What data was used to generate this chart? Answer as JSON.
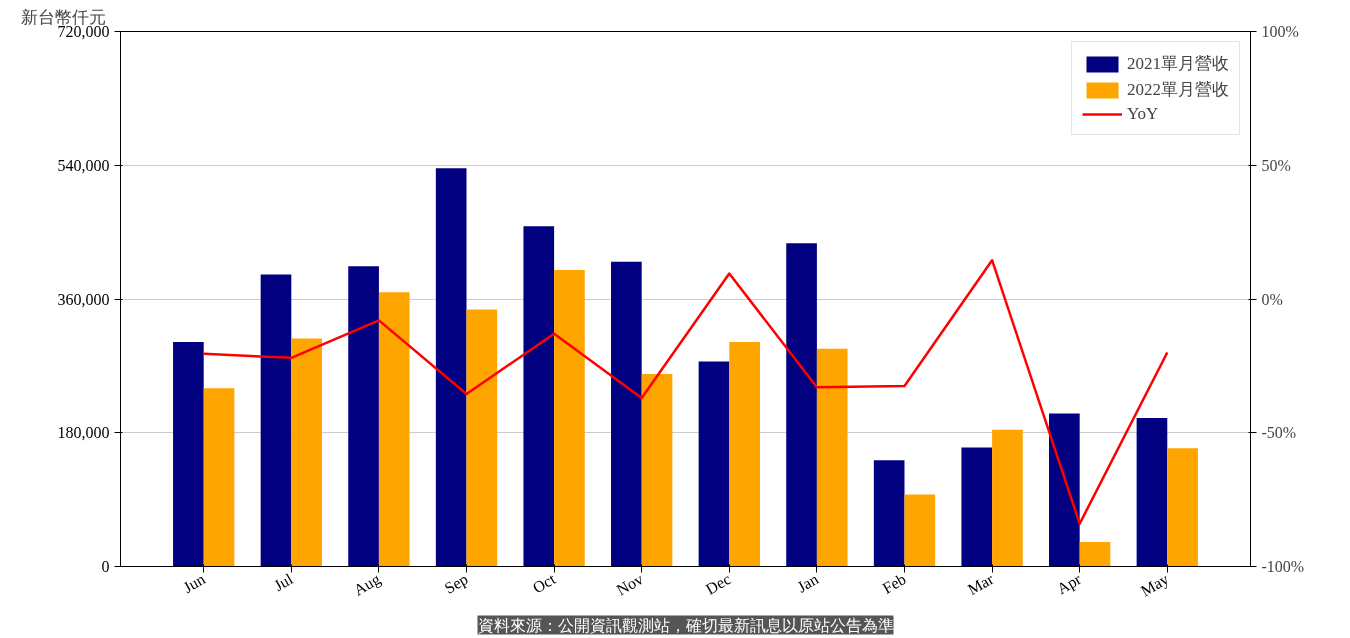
{
  "chart_data": {
    "type": "bar",
    "ylabel": "新台幣仟元",
    "categories": [
      "Jun",
      "Jul",
      "Aug",
      "Sep",
      "Oct",
      "Nov",
      "Dec",
      "Jan",
      "Feb",
      "Mar",
      "Apr",
      "May"
    ],
    "series": [
      {
        "name": "2021單月營收",
        "color": "#000080",
        "values": [
          302000,
          393000,
          404000,
          536000,
          458000,
          410000,
          276000,
          435000,
          143000,
          160000,
          206000,
          200000
        ]
      },
      {
        "name": "2022單月營收",
        "color": "#ffa500",
        "values": [
          240000,
          307000,
          369000,
          346000,
          399000,
          259000,
          302000,
          293000,
          97000,
          184000,
          33000,
          159000
        ]
      },
      {
        "name": "YoY",
        "type": "line",
        "axis": "y2",
        "color": "#ff0000",
        "values": [
          -20.5,
          -22,
          -8,
          -35.5,
          -13,
          -37,
          9.5,
          -33,
          -32.5,
          14.5,
          -84,
          -20
        ]
      }
    ],
    "ylim": [
      0,
      720000
    ],
    "yticks": [
      {
        "value": 0,
        "label": "0"
      },
      {
        "value": 180000,
        "label": "180,000"
      },
      {
        "value": 360000,
        "label": "360,000"
      },
      {
        "value": 540000,
        "label": "540,000"
      },
      {
        "value": 720000,
        "label": "720,000"
      }
    ],
    "y2lim": [
      -100,
      100
    ],
    "y2ticks": [
      {
        "value": -100,
        "label": "-100%"
      },
      {
        "value": -50,
        "label": "-50%"
      },
      {
        "value": 0,
        "label": "0%"
      },
      {
        "value": 50,
        "label": "50%"
      },
      {
        "value": 100,
        "label": "100%"
      }
    ],
    "grid": "y",
    "legend": "top right",
    "annotations": [
      "資料來源：公開資訊觀測站，確切最新訊息以原站公告為準"
    ]
  }
}
